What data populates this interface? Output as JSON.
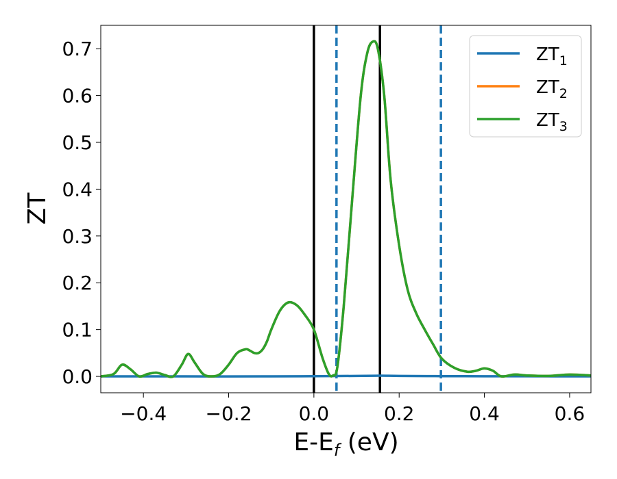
{
  "chart_data": {
    "type": "line",
    "title": "",
    "xlabel_main": "E-E",
    "xlabel_sub": "f",
    "xlabel_tail": " (eV)",
    "ylabel": "ZT",
    "xlim": [
      -0.5,
      0.65
    ],
    "ylim": [
      -0.035,
      0.75
    ],
    "grid": false,
    "legend_position": "top-right",
    "x_ticks": [
      -0.4,
      -0.2,
      0.0,
      0.2,
      0.4,
      0.6
    ],
    "x_tick_labels": [
      "−0.4",
      "−0.2",
      "0.0",
      "0.2",
      "0.4",
      "0.6"
    ],
    "y_ticks": [
      0.0,
      0.1,
      0.2,
      0.3,
      0.4,
      0.5,
      0.6,
      0.7
    ],
    "y_tick_labels": [
      "0.0",
      "0.1",
      "0.2",
      "0.3",
      "0.4",
      "0.5",
      "0.6",
      "0.7"
    ],
    "vlines": [
      {
        "x": 0.0,
        "style": "solid",
        "color": "#000000"
      },
      {
        "x": 0.155,
        "style": "solid",
        "color": "#000000"
      },
      {
        "x": 0.053,
        "style": "dashed",
        "color": "#1f77b4"
      },
      {
        "x": 0.298,
        "style": "dashed",
        "color": "#1f77b4"
      }
    ],
    "series": [
      {
        "name": "ZT",
        "name_sub": "1",
        "color": "#1f77b4",
        "x": [
          -0.5,
          -0.3,
          -0.1,
          0.0,
          0.1,
          0.155,
          0.2,
          0.3,
          0.4,
          0.5,
          0.65
        ],
        "y": [
          0.0,
          0.0,
          0.0,
          0.0005,
          0.001,
          0.0015,
          0.001,
          0.0005,
          0.0003,
          0.0002,
          0.0001
        ]
      },
      {
        "name": "ZT",
        "name_sub": "2",
        "color": "#ff7f0e",
        "x": [
          -0.5,
          -0.47,
          -0.45,
          -0.43,
          -0.41,
          -0.39,
          -0.37,
          -0.35,
          -0.33,
          -0.31,
          -0.295,
          -0.28,
          -0.26,
          -0.24,
          -0.22,
          -0.2,
          -0.18,
          -0.16,
          -0.15,
          -0.14,
          -0.13,
          -0.12,
          -0.11,
          -0.1,
          -0.08,
          -0.06,
          -0.04,
          -0.02,
          0.0,
          0.02,
          0.035,
          0.045,
          0.055,
          0.07,
          0.09,
          0.11,
          0.125,
          0.138,
          0.15,
          0.165,
          0.18,
          0.2,
          0.22,
          0.24,
          0.26,
          0.28,
          0.3,
          0.33,
          0.36,
          0.38,
          0.4,
          0.42,
          0.44,
          0.47,
          0.5,
          0.55,
          0.6,
          0.65
        ],
        "y": [
          0.0,
          0.005,
          0.025,
          0.015,
          0.0,
          0.005,
          0.008,
          0.003,
          0.0,
          0.025,
          0.048,
          0.03,
          0.005,
          0.0,
          0.005,
          0.025,
          0.05,
          0.058,
          0.055,
          0.05,
          0.05,
          0.058,
          0.075,
          0.1,
          0.14,
          0.158,
          0.152,
          0.13,
          0.1,
          0.04,
          0.005,
          0.002,
          0.02,
          0.15,
          0.38,
          0.6,
          0.69,
          0.715,
          0.7,
          0.6,
          0.42,
          0.28,
          0.185,
          0.135,
          0.1,
          0.068,
          0.038,
          0.018,
          0.01,
          0.012,
          0.017,
          0.012,
          0.0,
          0.004,
          0.002,
          0.001,
          0.004,
          0.002
        ]
      },
      {
        "name": "ZT",
        "name_sub": "3",
        "color": "#2ca02c",
        "x": [
          -0.5,
          -0.47,
          -0.45,
          -0.43,
          -0.41,
          -0.39,
          -0.37,
          -0.35,
          -0.33,
          -0.31,
          -0.295,
          -0.28,
          -0.26,
          -0.24,
          -0.22,
          -0.2,
          -0.18,
          -0.16,
          -0.15,
          -0.14,
          -0.13,
          -0.12,
          -0.11,
          -0.1,
          -0.08,
          -0.06,
          -0.04,
          -0.02,
          0.0,
          0.02,
          0.035,
          0.045,
          0.055,
          0.07,
          0.09,
          0.11,
          0.125,
          0.138,
          0.15,
          0.165,
          0.18,
          0.2,
          0.22,
          0.24,
          0.26,
          0.28,
          0.3,
          0.33,
          0.36,
          0.38,
          0.4,
          0.42,
          0.44,
          0.47,
          0.5,
          0.55,
          0.6,
          0.65
        ],
        "y": [
          0.0,
          0.005,
          0.025,
          0.015,
          0.0,
          0.005,
          0.008,
          0.003,
          0.0,
          0.025,
          0.048,
          0.03,
          0.005,
          0.0,
          0.005,
          0.025,
          0.05,
          0.058,
          0.055,
          0.05,
          0.05,
          0.058,
          0.075,
          0.1,
          0.14,
          0.158,
          0.152,
          0.13,
          0.1,
          0.04,
          0.005,
          0.002,
          0.02,
          0.15,
          0.38,
          0.6,
          0.69,
          0.715,
          0.7,
          0.6,
          0.42,
          0.28,
          0.185,
          0.135,
          0.1,
          0.068,
          0.038,
          0.018,
          0.01,
          0.012,
          0.017,
          0.012,
          0.0,
          0.004,
          0.002,
          0.001,
          0.004,
          0.002
        ]
      }
    ]
  }
}
